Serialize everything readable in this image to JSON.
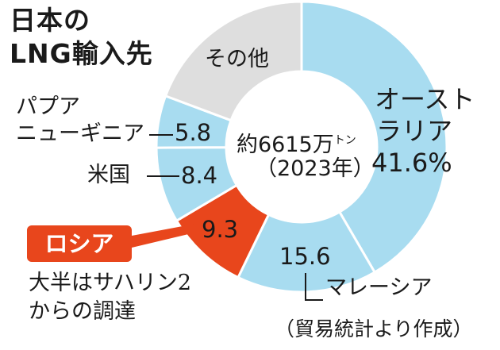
{
  "title": {
    "line1": "日本の",
    "line2": "LNG輸入先"
  },
  "center": {
    "total": "約6615万",
    "unit": "トン",
    "year": "（2023年）"
  },
  "labels": {
    "other": "その他",
    "png_line1": "パプア",
    "png_line2": "ニューギニア",
    "usa": "米国",
    "malaysia": "マレーシア",
    "australia_line1": "オースト",
    "australia_line2": "ラリア",
    "australia_value": "41.6%"
  },
  "values_text": {
    "png": "5.8",
    "usa": "8.4",
    "russia": "9.3",
    "malaysia": "15.6"
  },
  "russia_note": {
    "badge": "ロシア",
    "line1": "大半はサハリン2",
    "line2": "からの調達"
  },
  "source": "（貿易統計より作成）",
  "colors": {
    "blue": "#a8dcf0",
    "gray": "#dedede",
    "russia": "#e8461c"
  },
  "chart_data": {
    "type": "pie",
    "title": "日本のLNG輸入先",
    "slices": [
      {
        "name": "オーストラリア",
        "value": 41.6,
        "color": "#a8dcf0"
      },
      {
        "name": "マレーシア",
        "value": 15.6,
        "color": "#a8dcf0"
      },
      {
        "name": "ロシア",
        "value": 9.3,
        "color": "#e8461c"
      },
      {
        "name": "米国",
        "value": 8.4,
        "color": "#a8dcf0"
      },
      {
        "name": "パプアニューギニア",
        "value": 5.8,
        "color": "#a8dcf0"
      },
      {
        "name": "その他",
        "value": 19.3,
        "color": "#dedede"
      }
    ]
  }
}
